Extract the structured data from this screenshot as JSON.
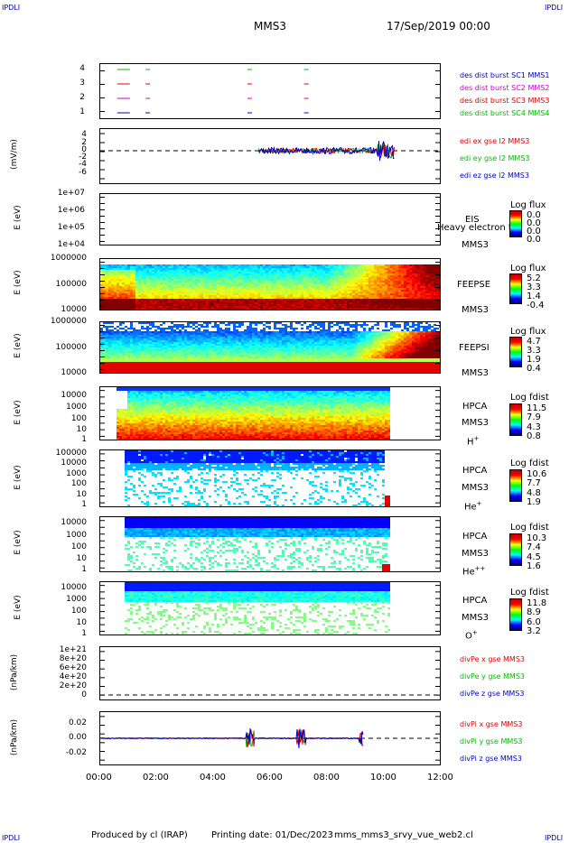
{
  "corners": {
    "tl": "IPDLI",
    "tr": "IPDLI",
    "bl": "IPDLI",
    "br": "IPDLI"
  },
  "header": {
    "spacecraft": "MMS3",
    "datetime": "17/Sep/2019 00:00"
  },
  "footer": {
    "produced": "Produced by cl (IRAP)",
    "printing": "Printing date: 01/Dec/2023",
    "file": "mms_mms3_srvy_vue_web2.cl"
  },
  "x_axis": {
    "ticks": [
      "00:00",
      "02:00",
      "04:00",
      "06:00",
      "08:00",
      "10:00",
      "12:00"
    ]
  },
  "panel1": {
    "yticks": [
      "4",
      "3",
      "2",
      "1"
    ],
    "legend": [
      {
        "text": "des dist burst SC1 MMS1",
        "color": "#0000cc"
      },
      {
        "text": "des dist burst SC2 MMS2",
        "color": "#cc00cc"
      },
      {
        "text": "des dist burst SC3 MMS3",
        "color": "#dd0000"
      },
      {
        "text": "des dist burst SC4 MMS4",
        "color": "#00bb00"
      }
    ]
  },
  "panel2": {
    "ylabel": "(mV/m)",
    "yticks": [
      "4",
      "2",
      "0",
      "-2",
      "-4",
      "-6"
    ],
    "legend": [
      {
        "text": "edi ex gse l2 MMS3",
        "color": "#dd0000"
      },
      {
        "text": "edi ey gse l2 MMS3",
        "color": "#00bb00"
      },
      {
        "text": "edi ez gse l2 MMS3",
        "color": "#0000cc"
      }
    ]
  },
  "panel3": {
    "ylabel": "E (eV)",
    "yticks": [
      "1e+07",
      "1e+06",
      "1e+05",
      "1e+04"
    ],
    "right1": "EIS",
    "right_overlay": "Heavy electron to",
    "right2": "MMS3",
    "cb_title": "Log flux",
    "cb_vals": [
      "0.0",
      "0.0",
      "0.0",
      "0.0"
    ]
  },
  "panel4": {
    "ylabel": "E (eV)",
    "yticks": [
      "1000000",
      "100000",
      "10000"
    ],
    "right1": "FEEPSE",
    "right2": "MMS3",
    "cb_title": "Log flux",
    "cb_vals": [
      "5.2",
      "3.3",
      "1.4",
      "-0.4"
    ]
  },
  "panel5": {
    "ylabel": "E (eV)",
    "yticks": [
      "1000000",
      "100000",
      "10000"
    ],
    "right1": "FEEPSI",
    "right2": "MMS3",
    "cb_title": "Log flux",
    "cb_vals": [
      "4.7",
      "3.3",
      "1.9",
      "0.4"
    ]
  },
  "panel6": {
    "ylabel": "E (eV)",
    "yticks": [
      "10000",
      "1000",
      "100",
      "10",
      "1"
    ],
    "right1": "HPCA",
    "right2": "MMS3",
    "species": "H",
    "charge": "+",
    "cb_title": "Log fdist",
    "cb_vals": [
      "11.5",
      "7.9",
      "4.3",
      "0.8"
    ]
  },
  "panel7": {
    "ylabel": "E (eV)",
    "yticks": [
      "100000",
      "10000",
      "1000",
      "100",
      "10",
      "1"
    ],
    "right1": "HPCA",
    "right2": "MMS3",
    "species": "He",
    "charge": "+",
    "cb_title": "Log fdist",
    "cb_vals": [
      "10.6",
      "7.7",
      "4.8",
      "1.9"
    ]
  },
  "panel8": {
    "ylabel": "E (eV)",
    "yticks": [
      "10000",
      "1000",
      "100",
      "10",
      "1"
    ],
    "right1": "HPCA",
    "right2": "MMS3",
    "species": "He",
    "charge": "++",
    "cb_title": "Log fdist",
    "cb_vals": [
      "10.3",
      "7.4",
      "4.5",
      "1.6"
    ]
  },
  "panel9": {
    "ylabel": "E (eV)",
    "yticks": [
      "10000",
      "1000",
      "100",
      "10",
      "1"
    ],
    "right1": "HPCA",
    "right2": "MMS3",
    "species": "O",
    "charge": "+",
    "cb_title": "Log fdist",
    "cb_vals": [
      "11.8",
      "8.9",
      "6.0",
      "3.2"
    ]
  },
  "panel10": {
    "ylabel": "(nPa/km)",
    "yticks": [
      "1e+21",
      "8e+20",
      "6e+20",
      "4e+20",
      "2e+20",
      "0"
    ],
    "legend": [
      {
        "text": "divPe x gse MMS3",
        "color": "#dd0000"
      },
      {
        "text": "divPe y gse MMS3",
        "color": "#00bb00"
      },
      {
        "text": "divPe z gse MMS3",
        "color": "#0000cc"
      }
    ]
  },
  "panel11": {
    "ylabel": "(nPa/km)",
    "yticks": [
      "0.02",
      "0.00",
      "-0.02"
    ],
    "legend": [
      {
        "text": "divPi x gse MMS3",
        "color": "#dd0000"
      },
      {
        "text": "divPi y gse MMS3",
        "color": "#00bb00"
      },
      {
        "text": "divPi z gse MMS3",
        "color": "#0000cc"
      }
    ]
  },
  "chart_data": {
    "type": "heatmap",
    "x_range": [
      "00:00",
      "12:00"
    ],
    "burst_segments_hours": [
      0.6,
      1.6,
      5.2,
      7.2
    ],
    "spectrogram_coverage_hours": {
      "FEEPSE": [
        0.0,
        12.0
      ],
      "FEEPSI": [
        0.0,
        12.0
      ],
      "HPCA_H": [
        0.55,
        10.2
      ],
      "HPCA_He+": [
        0.8,
        10.2
      ],
      "HPCA_He++": [
        0.8,
        10.2
      ],
      "HPCA_O+": [
        0.8,
        10.2
      ]
    },
    "edi_active_hours": [
      5.6,
      10.4
    ],
    "divPi_spikes_hours": [
      5.3,
      7.1,
      9.3
    ]
  }
}
